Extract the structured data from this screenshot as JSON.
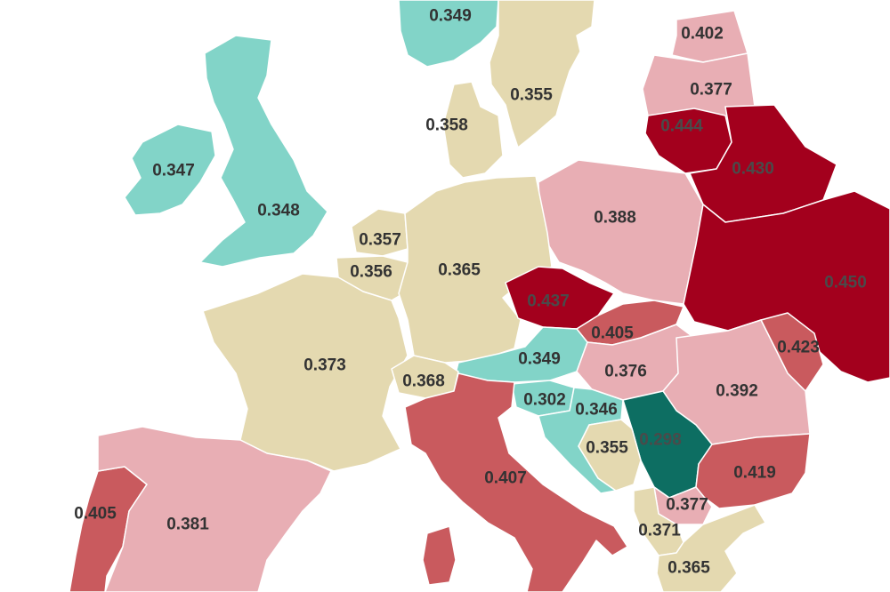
{
  "map": {
    "colors": {
      "sea": "#ffffff",
      "tan": "#e4d9b0",
      "teal_light": "#82d4c8",
      "teal_dark": "#0d6e62",
      "pink_light": "#e8aeb4",
      "red_mid": "#c95a5e",
      "red_dark": "#a3001d",
      "label": "#333333"
    },
    "regions": [
      {
        "value": "0.349",
        "color": "teal_light"
      },
      {
        "value": "0.355",
        "color": "tan"
      },
      {
        "value": "0.402",
        "color": "pink_light"
      },
      {
        "value": "0.377",
        "color": "pink_light"
      },
      {
        "value": "0.358",
        "color": "tan"
      },
      {
        "value": "0.444",
        "color": "red_dark"
      },
      {
        "value": "0.430",
        "color": "red_dark"
      },
      {
        "value": "0.347",
        "color": "teal_light"
      },
      {
        "value": "0.348",
        "color": "teal_light"
      },
      {
        "value": "0.388",
        "color": "pink_light"
      },
      {
        "value": "0.357",
        "color": "tan"
      },
      {
        "value": "0.356",
        "color": "tan"
      },
      {
        "value": "0.365",
        "color": "tan"
      },
      {
        "value": "0.437",
        "color": "red_dark"
      },
      {
        "value": "0.450",
        "color": "red_dark"
      },
      {
        "value": "0.405",
        "color": "red_mid"
      },
      {
        "value": "0.423",
        "color": "red_mid"
      },
      {
        "value": "0.373",
        "color": "tan"
      },
      {
        "value": "0.349",
        "color": "teal_light"
      },
      {
        "value": "0.376",
        "color": "pink_light"
      },
      {
        "value": "0.368",
        "color": "tan"
      },
      {
        "value": "0.392",
        "color": "pink_light"
      },
      {
        "value": "0.302",
        "color": "teal_light"
      },
      {
        "value": "0.346",
        "color": "teal_light"
      },
      {
        "value": "0.298",
        "color": "teal_dark"
      },
      {
        "value": "0.355",
        "color": "tan"
      },
      {
        "value": "0.419",
        "color": "red_mid"
      },
      {
        "value": "0.407",
        "color": "red_mid"
      },
      {
        "value": "0.377",
        "color": "pink_light"
      },
      {
        "value": "0.405",
        "color": "red_mid"
      },
      {
        "value": "0.381",
        "color": "pink_light"
      },
      {
        "value": "0.371",
        "color": "tan"
      },
      {
        "value": "0.365",
        "color": "tan"
      }
    ]
  }
}
